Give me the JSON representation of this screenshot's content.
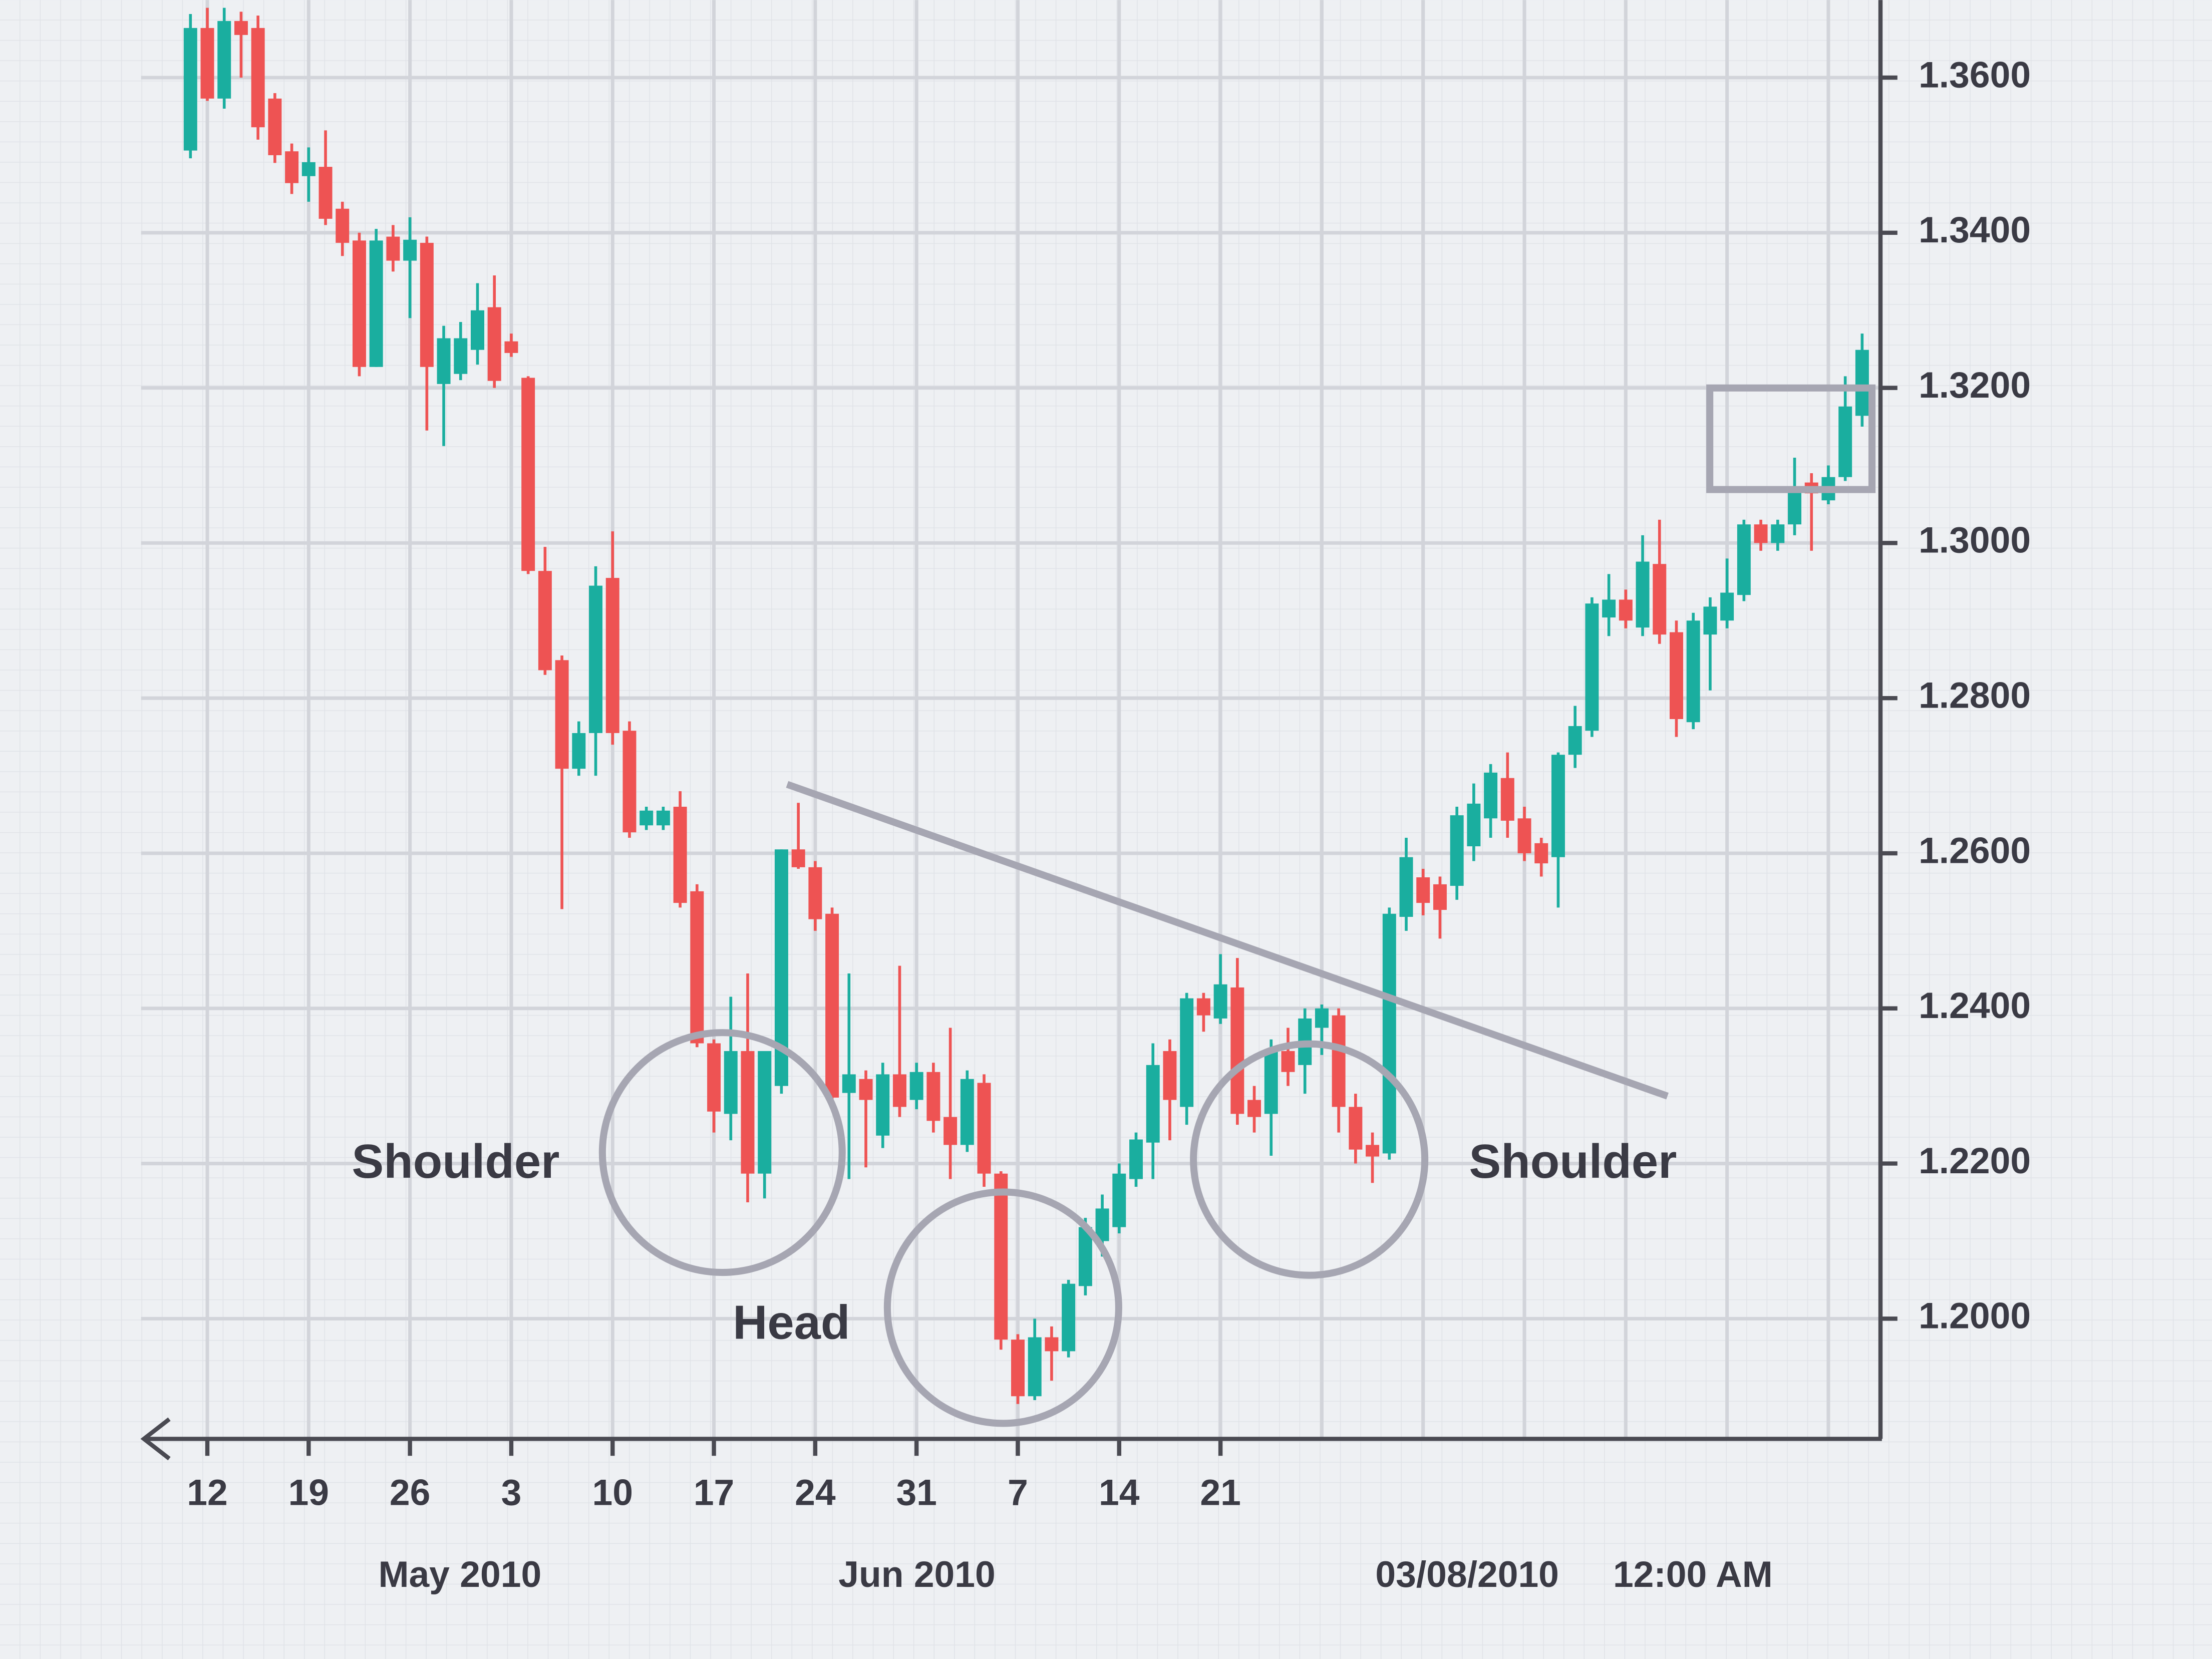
{
  "chart_data": {
    "type": "candlestick",
    "up_color": "#1aae9f",
    "down_color": "#ee5353",
    "grid": true,
    "ylim": [
      1.1845,
      1.37
    ],
    "yticks": [
      {
        "value": 1.2,
        "label": "1.2000"
      },
      {
        "value": 1.22,
        "label": "1.2200"
      },
      {
        "value": 1.24,
        "label": "1.2400"
      },
      {
        "value": 1.26,
        "label": "1.2600"
      },
      {
        "value": 1.28,
        "label": "1.2800"
      },
      {
        "value": 1.3,
        "label": "1.3000"
      },
      {
        "value": 1.32,
        "label": "1.3200"
      },
      {
        "value": 1.34,
        "label": "1.3400"
      },
      {
        "value": 1.36,
        "label": "1.3600"
      }
    ],
    "categories": [
      null,
      "12",
      null,
      null,
      null,
      null,
      null,
      "19",
      null,
      null,
      null,
      null,
      null,
      "26",
      null,
      null,
      null,
      null,
      null,
      "3",
      null,
      null,
      null,
      null,
      null,
      "10",
      null,
      null,
      null,
      null,
      null,
      "17",
      null,
      null,
      null,
      null,
      null,
      "24",
      null,
      null,
      null,
      null,
      null,
      "31",
      null,
      null,
      null,
      null,
      null,
      "7",
      null,
      null,
      null,
      null,
      null,
      "14",
      null,
      null,
      null,
      null,
      null,
      "21",
      null,
      null,
      null,
      null,
      null,
      null,
      null,
      null,
      null,
      null,
      null,
      null,
      null,
      null,
      null,
      null,
      null,
      null,
      null,
      null,
      null,
      null,
      null,
      null,
      null,
      null,
      null,
      null,
      null,
      null,
      null,
      null,
      null,
      null,
      null,
      null,
      null,
      null
    ],
    "open": [
      1.3506,
      1.3664,
      1.3573,
      1.3673,
      1.3664,
      1.3573,
      1.3505,
      1.3473,
      1.3485,
      1.3431,
      1.339,
      1.3227,
      1.3395,
      1.3364,
      1.3387,
      1.3205,
      1.3218,
      1.3249,
      1.3304,
      1.326,
      1.3213,
      1.2964,
      1.2849,
      1.2709,
      1.2755,
      1.2955,
      1.2758,
      1.2636,
      1.2636,
      1.266,
      1.2551,
      1.2355,
      1.2264,
      1.2345,
      1.2187,
      1.23,
      1.2605,
      1.2582,
      1.2522,
      1.2291,
      1.2309,
      1.2236,
      1.2315,
      1.2282,
      1.2318,
      1.226,
      1.2224,
      1.2304,
      1.2187,
      1.1973,
      1.19,
      1.1976,
      1.1958,
      1.2042,
      1.21,
      1.2118,
      1.218,
      1.2227,
      1.2345,
      1.2273,
      1.2413,
      1.2387,
      1.2427,
      1.2282,
      1.2264,
      1.2345,
      1.2327,
      1.2375,
      1.2391,
      1.2273,
      1.2224,
      1.2213,
      1.2518,
      1.2569,
      1.256,
      1.2558,
      1.2609,
      1.2645,
      1.2697,
      1.2645,
      1.2613,
      1.2595,
      1.2727,
      1.2758,
      1.2904,
      1.2927,
      1.2891,
      1.2973,
      1.2885,
      1.2769,
      1.2882,
      1.29,
      1.2933,
      1.3024,
      1.3,
      1.3024,
      1.3078,
      1.3055,
      1.3085,
      1.3164
    ],
    "high": [
      1.3682,
      1.369,
      1.369,
      1.3685,
      1.368,
      1.358,
      1.3515,
      1.351,
      1.3532,
      1.344,
      1.34,
      1.3405,
      1.341,
      1.342,
      1.3395,
      1.328,
      1.3285,
      1.3335,
      1.3345,
      1.327,
      1.3215,
      1.2995,
      1.2855,
      1.277,
      1.297,
      1.3015,
      1.277,
      1.266,
      1.266,
      1.268,
      1.256,
      1.236,
      1.2415,
      1.2445,
      1.2345,
      1.2605,
      1.2665,
      1.259,
      1.253,
      1.2445,
      1.232,
      1.233,
      1.2455,
      1.233,
      1.233,
      1.2375,
      1.232,
      1.2315,
      1.219,
      1.198,
      1.2,
      1.199,
      1.205,
      1.213,
      1.216,
      1.22,
      1.224,
      1.2355,
      1.236,
      1.242,
      1.242,
      1.247,
      1.2465,
      1.23,
      1.236,
      1.2375,
      1.24,
      1.2405,
      1.24,
      1.229,
      1.224,
      1.253,
      1.262,
      1.258,
      1.257,
      1.266,
      1.269,
      1.2715,
      1.273,
      1.266,
      1.262,
      1.273,
      1.279,
      1.293,
      1.296,
      1.294,
      1.301,
      1.303,
      1.29,
      1.291,
      1.293,
      1.298,
      1.303,
      1.303,
      1.303,
      1.311,
      1.309,
      1.31,
      1.3215,
      1.327
    ],
    "low": [
      1.3496,
      1.357,
      1.356,
      1.36,
      1.352,
      1.349,
      1.345,
      1.344,
      1.341,
      1.337,
      1.3215,
      1.3227,
      1.335,
      1.329,
      1.3145,
      1.3125,
      1.321,
      1.323,
      1.32,
      1.324,
      1.296,
      1.283,
      1.2528,
      1.27,
      1.27,
      1.274,
      1.262,
      1.263,
      1.263,
      1.253,
      1.235,
      1.224,
      1.223,
      1.215,
      1.2155,
      1.229,
      1.258,
      1.25,
      1.227,
      1.218,
      1.2195,
      1.222,
      1.226,
      1.227,
      1.224,
      1.218,
      1.2215,
      1.217,
      1.196,
      1.189,
      1.1895,
      1.192,
      1.195,
      1.203,
      1.208,
      1.211,
      1.217,
      1.218,
      1.223,
      1.225,
      1.237,
      1.238,
      1.225,
      1.224,
      1.221,
      1.23,
      1.229,
      1.234,
      1.224,
      1.22,
      1.2175,
      1.2205,
      1.25,
      1.252,
      1.249,
      1.254,
      1.259,
      1.262,
      1.262,
      1.259,
      1.257,
      1.253,
      1.271,
      1.275,
      1.288,
      1.289,
      1.288,
      1.287,
      1.275,
      1.276,
      1.281,
      1.289,
      1.2925,
      1.299,
      1.299,
      1.301,
      1.299,
      1.305,
      1.308,
      1.315
    ],
    "close": [
      1.3664,
      1.3573,
      1.3673,
      1.3655,
      1.3536,
      1.35,
      1.3464,
      1.3491,
      1.3418,
      1.3387,
      1.3227,
      1.339,
      1.3364,
      1.3391,
      1.3227,
      1.3264,
      1.3264,
      1.33,
      1.3209,
      1.3245,
      1.2964,
      1.2836,
      1.2709,
      1.2755,
      1.2945,
      1.2755,
      1.2627,
      1.2655,
      1.2655,
      1.2536,
      1.2355,
      1.2267,
      1.2345,
      1.2187,
      1.2345,
      1.2605,
      1.2582,
      1.2515,
      1.2285,
      1.2315,
      1.2282,
      1.2315,
      1.2273,
      1.2318,
      1.2255,
      1.2224,
      1.2309,
      1.2187,
      1.1973,
      1.19,
      1.1976,
      1.1958,
      1.2045,
      1.2118,
      1.2142,
      1.2187,
      1.2231,
      1.2327,
      1.2282,
      1.2413,
      1.2391,
      1.2431,
      1.2264,
      1.226,
      1.2345,
      1.2318,
      1.2387,
      1.24,
      1.2273,
      1.2218,
      1.2209,
      1.2522,
      1.2595,
      1.2536,
      1.2527,
      1.2649,
      1.2664,
      1.2704,
      1.2642,
      1.26,
      1.2587,
      1.2727,
      1.2764,
      1.2922,
      1.2927,
      1.29,
      1.2976,
      1.2882,
      1.2773,
      1.29,
      1.2918,
      1.2936,
      1.3024,
      1.3,
      1.3024,
      1.3073,
      1.3064,
      1.3085,
      1.3176,
      1.3249
    ],
    "period_labels": [
      "May 2010",
      "Jun 2010"
    ],
    "timestamp": [
      "03/08/2010",
      "12:00 AM"
    ],
    "annotations": [
      "Shoulder",
      "Head",
      "Shoulder"
    ]
  }
}
